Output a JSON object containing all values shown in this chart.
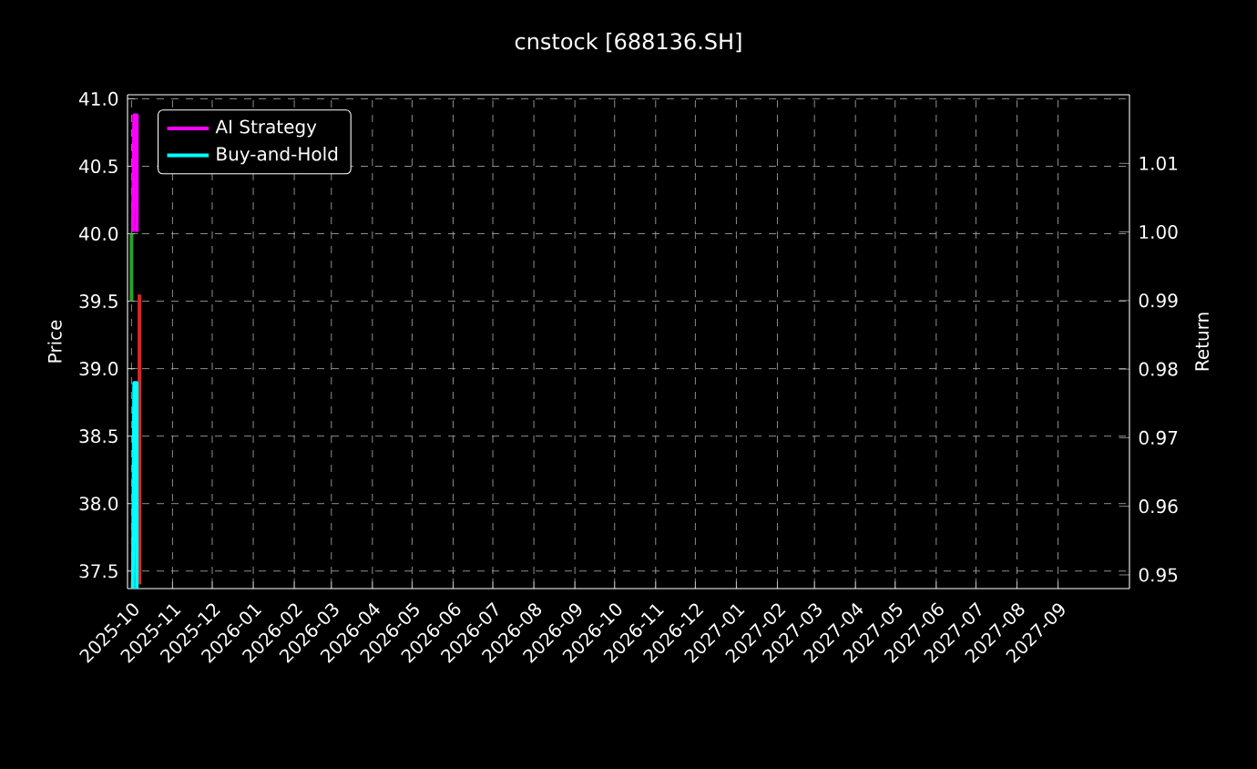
{
  "chart_data": {
    "type": "line",
    "title": "cnstock [688136.SH]",
    "ylabel": "Price",
    "y2label": "Return",
    "xlim": [
      "2025-09-28",
      "2027-10-25"
    ],
    "xticks": [
      "2025-10",
      "2025-11",
      "2025-12",
      "2026-01",
      "2026-02",
      "2026-03",
      "2026-04",
      "2026-05",
      "2026-06",
      "2026-07",
      "2026-08",
      "2026-09",
      "2026-10",
      "2026-11",
      "2026-12",
      "2027-01",
      "2027-02",
      "2027-03",
      "2027-04",
      "2027-05",
      "2027-06",
      "2027-07",
      "2027-08",
      "2027-09"
    ],
    "ylim": [
      37.37,
      41.03
    ],
    "yticks": [
      37.5,
      {
        "value": 38,
        "label": "38.0"
      },
      38.5,
      {
        "value": 39,
        "label": "39.0"
      },
      39.5,
      {
        "value": 40,
        "label": "40.0"
      },
      40.5,
      {
        "value": 41,
        "label": "41.0"
      }
    ],
    "y2lim": [
      0.948,
      1.02
    ],
    "y2ticks": [
      0.95,
      0.96,
      0.97,
      0.98,
      0.99,
      {
        "value": 1,
        "label": "1.00"
      },
      1.01
    ],
    "series": [
      {
        "color": "#2ca02c",
        "x": [
          "2025-10-01",
          "2025-10-01"
        ],
        "values": [
          40.0,
          39.5
        ]
      },
      {
        "color": "#d62728",
        "x": [
          "2025-10-07",
          "2025-10-07"
        ],
        "values": [
          39.55,
          37.4
        ]
      },
      {
        "name": "AI Strategy",
        "color": "#ff00ff",
        "axis": "y2",
        "x": [
          "2025-10-02",
          "2025-10-03",
          "2025-10-05",
          "2025-10-05"
        ],
        "values": [
          1.0,
          1.017,
          1.017,
          1.0
        ]
      },
      {
        "name": "Buy-and-Hold",
        "color": "#00ffff",
        "axis": "y2",
        "x": [
          "2025-10-02",
          "2025-10-03",
          "2025-10-05",
          "2025-10-05"
        ],
        "values": [
          0.948,
          0.978,
          0.978,
          0.948
        ]
      }
    ],
    "grid": true,
    "legend": "top left",
    "marker": "none",
    "line_style": "solid"
  }
}
